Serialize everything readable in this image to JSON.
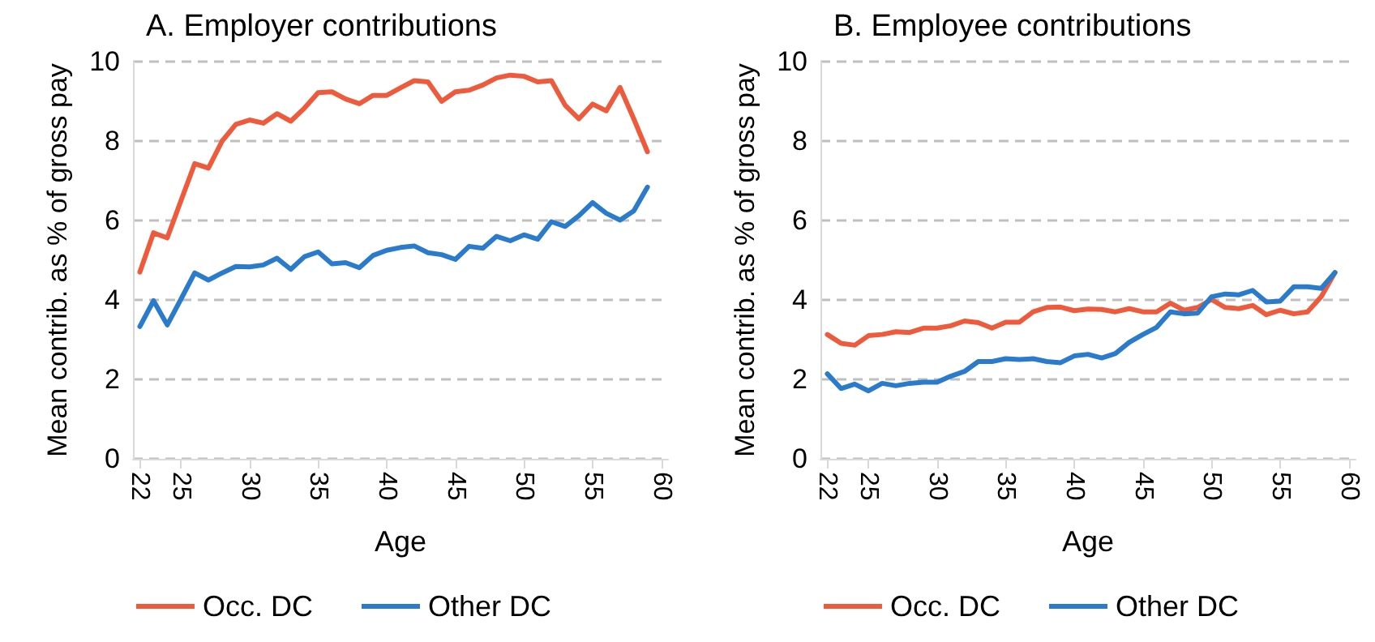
{
  "chart_data": [
    {
      "type": "line",
      "title": "A. Employer contributions",
      "xlabel": "Age",
      "ylabel": "Mean contrib. as % of gross pay",
      "x": [
        22,
        23,
        24,
        25,
        26,
        27,
        28,
        29,
        30,
        31,
        32,
        33,
        34,
        35,
        36,
        37,
        38,
        39,
        40,
        41,
        42,
        43,
        44,
        45,
        46,
        47,
        48,
        49,
        50,
        51,
        52,
        53,
        54,
        55,
        56,
        57,
        58,
        59
      ],
      "series": [
        {
          "name": "Occ. DC",
          "color": "#ee5b3c",
          "values": [
            4.7,
            5.69,
            5.56,
            6.5,
            7.43,
            7.32,
            8.0,
            8.42,
            8.53,
            8.45,
            8.69,
            8.5,
            8.83,
            9.22,
            9.24,
            9.06,
            8.94,
            9.15,
            9.15,
            9.34,
            9.52,
            9.49,
            9.0,
            9.24,
            9.28,
            9.41,
            9.59,
            9.66,
            9.63,
            9.49,
            9.52,
            8.9,
            8.56,
            8.93,
            8.76,
            9.35,
            8.56,
            7.73
          ]
        },
        {
          "name": "Other DC",
          "color": "#2a7bcb",
          "values": [
            3.33,
            3.98,
            3.37,
            4.02,
            4.68,
            4.5,
            4.68,
            4.84,
            4.83,
            4.88,
            5.05,
            4.77,
            5.09,
            5.21,
            4.91,
            4.94,
            4.81,
            5.12,
            5.25,
            5.32,
            5.36,
            5.19,
            5.14,
            5.02,
            5.35,
            5.3,
            5.6,
            5.49,
            5.64,
            5.53,
            5.97,
            5.85,
            6.12,
            6.45,
            6.18,
            6.01,
            6.24,
            6.84
          ]
        }
      ],
      "xlim": [
        21.5,
        60.5
      ],
      "xticks": [
        22,
        25,
        30,
        35,
        40,
        45,
        50,
        55,
        60
      ],
      "ylim": [
        0,
        10
      ],
      "yticks": [
        0,
        2,
        4,
        6,
        8,
        10
      ],
      "grid": "y",
      "legend": "bottom",
      "marker": "none",
      "line_style": "solid"
    },
    {
      "type": "line",
      "title": "B. Employee contributions",
      "xlabel": "Age",
      "ylabel": "Mean contrib. as % of gross pay",
      "x": [
        22,
        23,
        24,
        25,
        26,
        27,
        28,
        29,
        30,
        31,
        32,
        33,
        34,
        35,
        36,
        37,
        38,
        39,
        40,
        41,
        42,
        43,
        44,
        45,
        46,
        47,
        48,
        49,
        50,
        51,
        52,
        53,
        54,
        55,
        56,
        57,
        58,
        59
      ],
      "series": [
        {
          "name": "Occ. DC",
          "color": "#ee5b3c",
          "values": [
            3.13,
            2.91,
            2.86,
            3.1,
            3.13,
            3.2,
            3.18,
            3.29,
            3.29,
            3.35,
            3.47,
            3.43,
            3.29,
            3.44,
            3.44,
            3.7,
            3.81,
            3.82,
            3.73,
            3.77,
            3.76,
            3.7,
            3.78,
            3.7,
            3.7,
            3.92,
            3.74,
            3.81,
            4.01,
            3.81,
            3.78,
            3.86,
            3.63,
            3.74,
            3.65,
            3.7,
            4.08,
            4.69
          ]
        },
        {
          "name": "Other DC",
          "color": "#2a7bcb",
          "values": [
            2.14,
            1.77,
            1.88,
            1.71,
            1.9,
            1.84,
            1.9,
            1.93,
            1.93,
            2.08,
            2.2,
            2.45,
            2.45,
            2.52,
            2.5,
            2.52,
            2.45,
            2.42,
            2.59,
            2.63,
            2.54,
            2.65,
            2.93,
            3.13,
            3.31,
            3.7,
            3.65,
            3.67,
            4.08,
            4.15,
            4.13,
            4.24,
            3.95,
            3.97,
            4.33,
            4.33,
            4.29,
            4.69
          ]
        }
      ],
      "xlim": [
        21.5,
        60.5
      ],
      "xticks": [
        22,
        25,
        30,
        35,
        40,
        45,
        50,
        55,
        60
      ],
      "ylim": [
        0,
        10
      ],
      "yticks": [
        0,
        2,
        4,
        6,
        8,
        10
      ],
      "grid": "y",
      "legend": "bottom",
      "marker": "none",
      "line_style": "solid"
    }
  ]
}
